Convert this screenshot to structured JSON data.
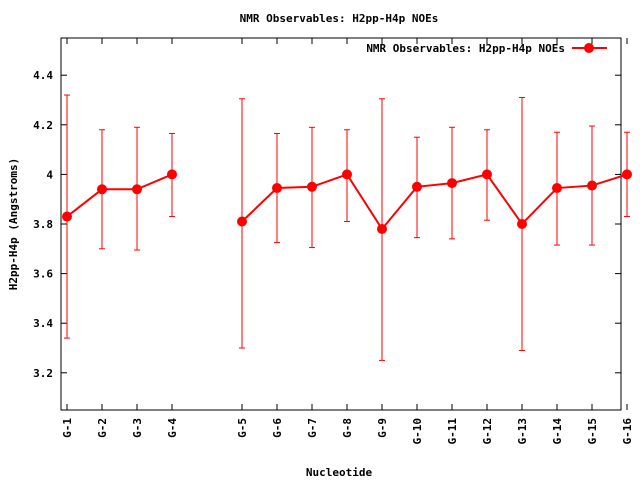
{
  "chart_data": {
    "type": "line",
    "title": "NMR Observables: H2pp-H4p NOEs",
    "xlabel": "Nucleotide",
    "ylabel": "H2pp-H4p (Angstroms)",
    "ylim": [
      3.05,
      4.55
    ],
    "yticks": [
      "3.2",
      "3.4",
      "3.6",
      "3.8",
      "4",
      "4.2",
      "4.4"
    ],
    "grid": false,
    "legend_position": "top-right",
    "categories": [
      "G-1",
      "G-2",
      "G-3",
      "G-4",
      "G-5",
      "G-6",
      "G-7",
      "G-8",
      "G-9",
      "G-10",
      "G-11",
      "G-12",
      "G-13",
      "G-14",
      "G-15",
      "G-16"
    ],
    "x": [
      1,
      2,
      3,
      4,
      6,
      7,
      8,
      9,
      10,
      11,
      12,
      13,
      14,
      15,
      16,
      17
    ],
    "series": [
      {
        "name": "NMR Observables: H2pp-H4p NOEs",
        "color": "#ff0000",
        "segments": [
          [
            0,
            3
          ],
          [
            4,
            15
          ]
        ],
        "values": [
          3.83,
          3.94,
          3.94,
          4.0,
          3.81,
          3.945,
          3.95,
          4.0,
          3.78,
          3.95,
          3.965,
          4.0,
          3.8,
          3.945,
          3.955,
          4.0
        ],
        "err_low": [
          3.34,
          3.7,
          3.695,
          3.83,
          3.3,
          3.725,
          3.705,
          3.81,
          3.25,
          3.745,
          3.74,
          3.815,
          3.29,
          3.715,
          3.715,
          3.83
        ],
        "err_high": [
          4.32,
          4.18,
          4.19,
          4.165,
          4.305,
          4.165,
          4.19,
          4.18,
          4.305,
          4.15,
          4.19,
          4.18,
          4.31,
          4.17,
          4.195,
          4.17
        ]
      }
    ]
  }
}
